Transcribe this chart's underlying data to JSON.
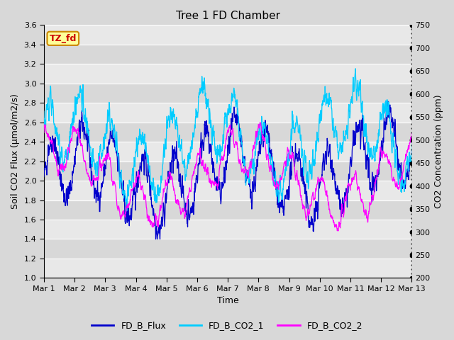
{
  "title": "Tree 1 FD Chamber",
  "xlabel": "Time",
  "ylabel_left": "Soil CO2 Flux (μmol/m2/s)",
  "ylabel_right": "CO2 Concentration (ppm)",
  "ylim_left": [
    1.0,
    3.6
  ],
  "ylim_right": [
    200,
    750
  ],
  "yticks_left": [
    1.0,
    1.2,
    1.4,
    1.6,
    1.8,
    2.0,
    2.2,
    2.4,
    2.6,
    2.8,
    3.0,
    3.2,
    3.4,
    3.6
  ],
  "yticks_right": [
    200,
    250,
    300,
    350,
    400,
    450,
    500,
    550,
    600,
    650,
    700,
    750
  ],
  "xtick_labels": [
    "Mar 1",
    "Mar 2",
    "Mar 3",
    "Mar 4",
    "Mar 5",
    "Mar 6",
    "Mar 7",
    "Mar 8",
    "Mar 9",
    "Mar 10",
    "Mar 11",
    "Mar 12",
    "Mar 13"
  ],
  "n_days": 12,
  "n_points_per_day": 144,
  "background_color": "#d8d8d8",
  "plot_bg_alt1": "#e8e8e8",
  "plot_bg_alt2": "#d0d0d0",
  "grid_color": "#ffffff",
  "flux_color": "#0000cc",
  "co2_1_color": "#00ccff",
  "co2_2_color": "#ff00ff",
  "legend_labels": [
    "FD_B_Flux",
    "FD_B_CO2_1",
    "FD_B_CO2_2"
  ],
  "annotation_text": "TZ_fd",
  "annotation_bg": "#ffff99",
  "annotation_border": "#cc8800",
  "annotation_text_color": "#cc0000",
  "random_seed": 42,
  "figsize": [
    6.4,
    4.8
  ],
  "dpi": 100
}
